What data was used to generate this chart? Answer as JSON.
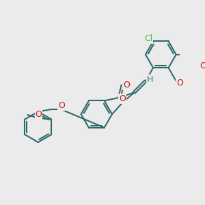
{
  "bg_color": "#ebebeb",
  "bond_color": "#2d6b6b",
  "bond_width": 1.5,
  "atom_colors": {
    "O": "#cc1111",
    "Cl": "#44bb44",
    "H": "#2d6b6b",
    "C": "#2d6b6b"
  },
  "xlim": [
    -4.2,
    4.2
  ],
  "ylim": [
    -3.2,
    3.2
  ],
  "figsize": [
    3.0,
    3.0
  ],
  "dpi": 100
}
